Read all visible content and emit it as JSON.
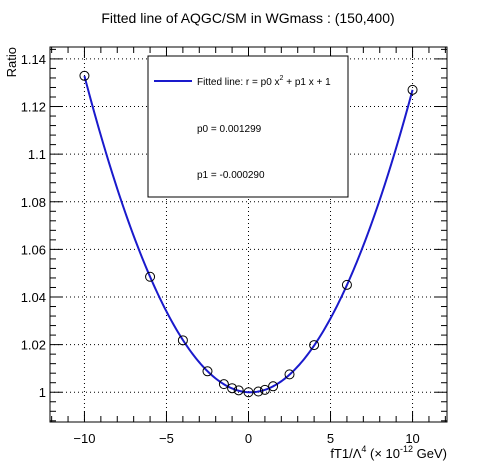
{
  "chart_data": {
    "type": "scatter",
    "title": "Fitted line of AQGC/SM in WGmass : (150,400)",
    "xlabel": {
      "main": "fT1/Λ",
      "main_sup": "4",
      "unit_pre": " (× 10",
      "unit_sup": "-12",
      "unit_post": " GeV)"
    },
    "ylabel": "Ratio",
    "xlim": [
      -12.1,
      12.1
    ],
    "ylim": [
      0.9875,
      1.145
    ],
    "xticks": [
      -10,
      -5,
      0,
      5,
      10
    ],
    "xtick_labels": [
      "−10",
      "−5",
      "0",
      "5",
      "10"
    ],
    "yticks": [
      1.0,
      1.02,
      1.04,
      1.06,
      1.08,
      1.1,
      1.12,
      1.14
    ],
    "ytick_labels": [
      "1",
      "1.02",
      "1.04",
      "1.06",
      "1.08",
      "1.1",
      "1.12",
      "1.14"
    ],
    "grid": true,
    "series": [
      {
        "x": [
          -10,
          -6,
          -4,
          -2.5,
          -1.5,
          -1,
          -0.6,
          0,
          0.6,
          1,
          1.5,
          2.5,
          4,
          6,
          10
        ],
        "y": [
          1.1329,
          1.0485,
          1.0218,
          1.0088,
          1.0034,
          1.0017,
          1.0008,
          1.0,
          1.0003,
          1.001,
          1.0025,
          1.0075,
          1.0198,
          1.0451,
          1.127
        ]
      }
    ],
    "fit": {
      "p0": 0.001299,
      "p1": -0.00029
    },
    "legend": {
      "position": "top-center",
      "line_label": "Fitted line: r =  p0 x",
      "line_label_sup": "2",
      "line_label_tail": " + p1 x + 1",
      "p0_text": "p0 = 0.001299",
      "p1_text": "p1 = -0.000290"
    },
    "colors": {
      "fit_line": "#1a1acc",
      "marker": "#000000"
    }
  }
}
